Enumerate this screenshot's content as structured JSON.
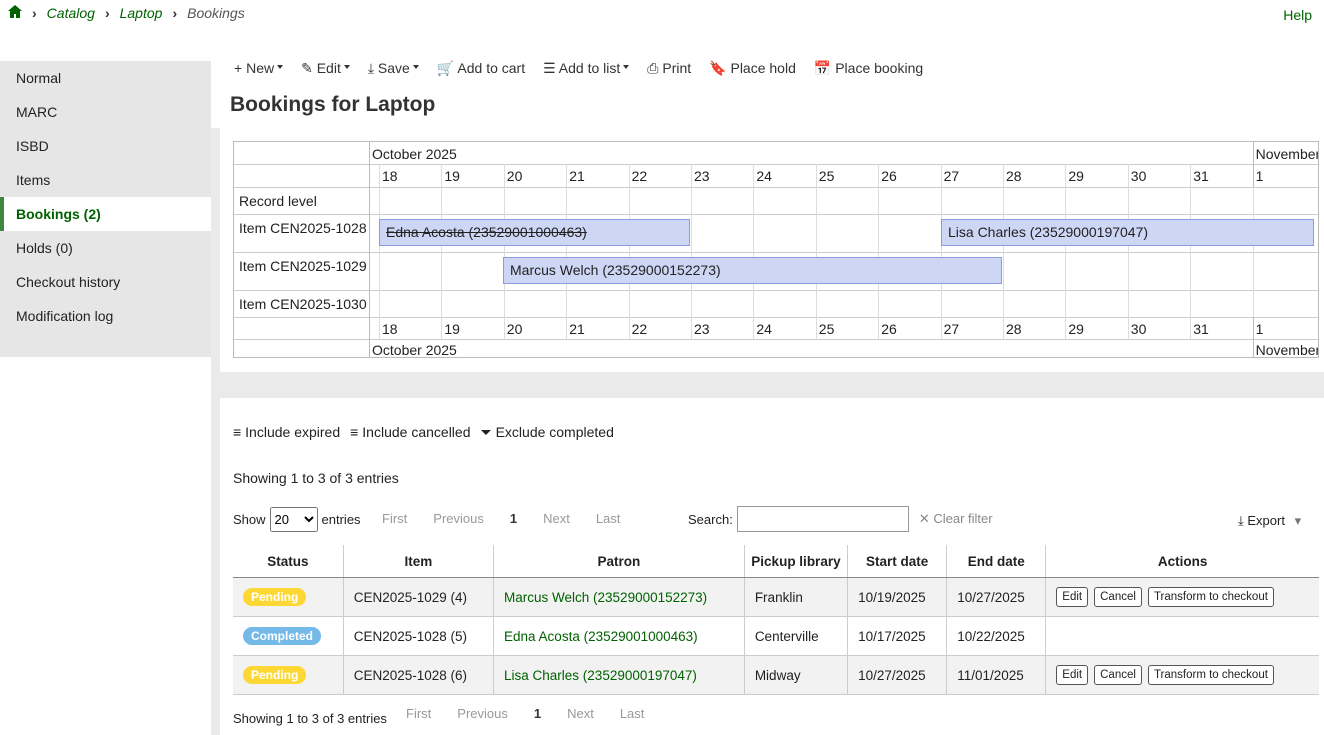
{
  "breadcrumb": {
    "items": [
      "Catalog",
      "Laptop"
    ],
    "current": "Bookings"
  },
  "help": "Help",
  "sidebar": [
    "Normal",
    "MARC",
    "ISBD",
    "Items",
    "Bookings (2)",
    "Holds (0)",
    "Checkout history",
    "Modification log"
  ],
  "toolbar": [
    "New",
    "Edit",
    "Save",
    "Add to cart",
    "Add to list",
    "Print",
    "Place hold",
    "Place booking"
  ],
  "title": "Bookings for Laptop",
  "timeline": {
    "months": [
      "October 2025",
      "November"
    ],
    "days": [
      18,
      19,
      20,
      21,
      22,
      23,
      24,
      25,
      26,
      27,
      28,
      29,
      30,
      31,
      1
    ],
    "groups": [
      {
        "label": "Record level",
        "bookings": []
      },
      {
        "label": "Item CEN2025-1028",
        "bookings": [
          "Edna Acosta (23529001000463)",
          "Lisa Charles (23529000197047)"
        ]
      },
      {
        "label": "Item CEN2025-1029",
        "bookings": [
          "Marcus Welch (23529000152273)"
        ]
      },
      {
        "label": "Item CEN2025-1030",
        "bookings": []
      }
    ]
  },
  "filters": [
    "Include expired",
    "Include cancelled",
    "Exclude completed"
  ],
  "info": "Showing 1 to 3 of 3 entries",
  "length": {
    "label": "Show",
    "value": "20",
    "suffix": "entries"
  },
  "pagination": [
    "First",
    "Previous",
    "1",
    "Next",
    "Last"
  ],
  "search": {
    "label": "Search:",
    "clear": "Clear filter"
  },
  "export": "Export",
  "table": {
    "headers": [
      "Status",
      "Item",
      "Patron",
      "Pickup library",
      "Start date",
      "End date",
      "Actions"
    ],
    "rows": [
      {
        "status": "Pending",
        "item": "CEN2025-1029 (4)",
        "patron": "Marcus Welch (23529000152273)",
        "library": "Franklin",
        "start": "10/19/2025",
        "end": "10/27/2025",
        "actions": [
          "Edit",
          "Cancel",
          "Transform to checkout"
        ]
      },
      {
        "status": "Completed",
        "item": "CEN2025-1028 (5)",
        "patron": "Edna Acosta (23529001000463)",
        "library": "Centerville",
        "start": "10/17/2025",
        "end": "10/22/2025",
        "actions": []
      },
      {
        "status": "Pending",
        "item": "CEN2025-1028 (6)",
        "patron": "Lisa Charles (23529000197047)",
        "library": "Midway",
        "start": "10/27/2025",
        "end": "11/01/2025",
        "actions": [
          "Edit",
          "Cancel",
          "Transform to checkout"
        ]
      }
    ]
  },
  "footer_info": "Showing 1 to 3 of 3 entries"
}
